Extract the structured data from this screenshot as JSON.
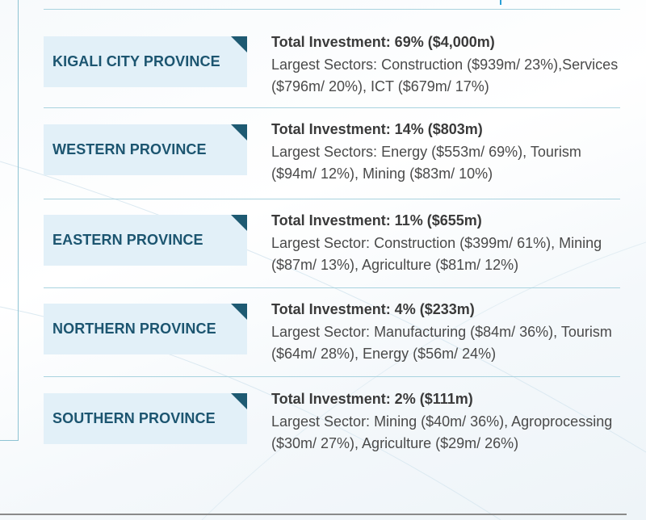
{
  "provinces": [
    {
      "name": "KIGALI CITY PROVINCE",
      "total": "Total Investment: 69% ($4,000m)",
      "sectors": "Largest Sectors: Construction ($939m/ 23%),Services ($796m/ 20%), ICT ($679m/ 17%)"
    },
    {
      "name": "WESTERN PROVINCE",
      "total": "Total Investment: 14% ($803m)",
      "sectors": "Largest Sectors: Energy ($553m/ 69%), Tourism ($94m/ 12%), Mining ($83m/ 10%)"
    },
    {
      "name": "EASTERN PROVINCE",
      "total": "Total Investment: 11% ($655m)",
      "sectors": "Largest Sector: Construction ($399m/ 61%), Mining ($87m/ 13%), Agriculture ($81m/ 12%)"
    },
    {
      "name": "NORTHERN PROVINCE",
      "total": "Total Investment: 4% ($233m)",
      "sectors": "Largest Sector: Manufacturing ($84m/ 36%), Tourism ($64m/ 28%), Energy ($56m/ 24%)"
    },
    {
      "name": "SOUTHERN PROVINCE",
      "total": "Total Investment: 2% ($111m)",
      "sectors": "Largest Sector: Mining ($40m/ 36%), Agroprocessing ($30m/ 27%), Agriculture ($29m/ 26%)"
    }
  ],
  "colors": {
    "label_bg": "#e2f0f8",
    "label_text": "#1c5570",
    "accent": "#1e5a72",
    "divider": "#a9d3df"
  }
}
